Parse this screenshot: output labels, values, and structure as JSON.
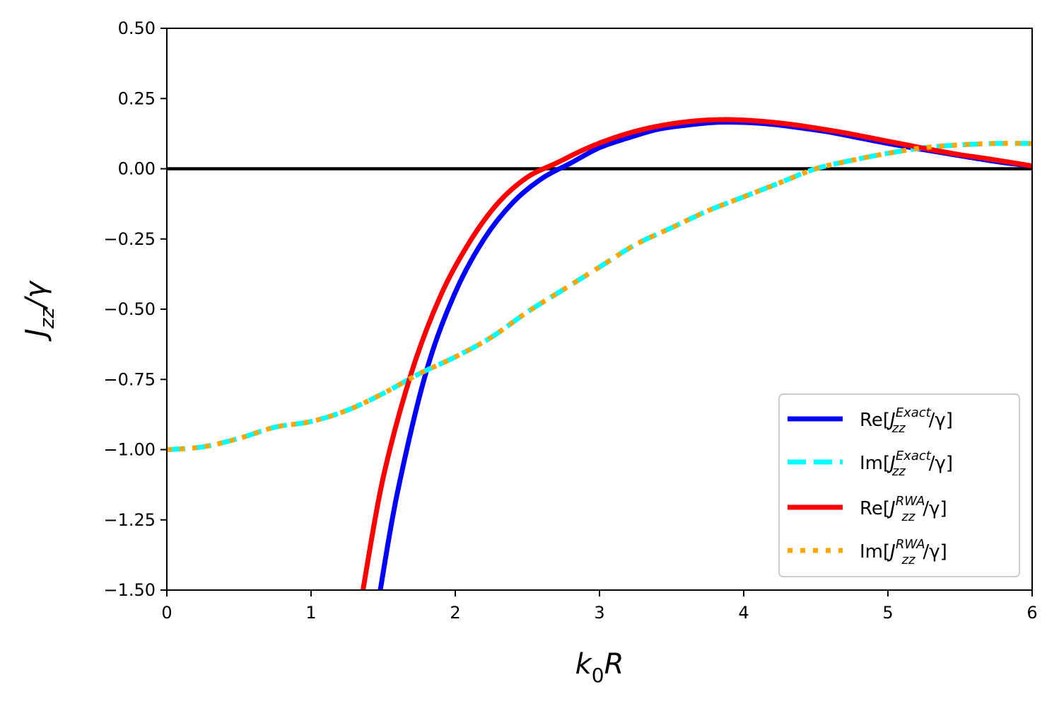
{
  "chart_data": {
    "type": "line",
    "xlabel": "k0R",
    "ylabel": "Jzz/γ",
    "xlim": [
      0,
      6
    ],
    "ylim": [
      -1.5,
      0.5
    ],
    "x_ticks": [
      "0",
      "1",
      "2",
      "3",
      "4",
      "5",
      "6"
    ],
    "y_ticks": [
      "0.50",
      "0.25",
      "0.00",
      "−0.25",
      "−0.50",
      "−0.75",
      "−1.00",
      "−1.25",
      "−1.50"
    ],
    "grid": false,
    "legend_position": "lower-right",
    "reference_line": {
      "y": 0,
      "color": "#000000"
    },
    "series": [
      {
        "name": "Re[Jzz^Exact/γ]",
        "legend": {
          "prefix": "Re[",
          "base": "J",
          "sup": "Exact",
          "sub": "zz",
          "suffix": "/γ]"
        },
        "color": "#0000ff",
        "style": "solid",
        "x": [
          1.48,
          1.6,
          1.8,
          2.0,
          2.2,
          2.4,
          2.6,
          2.8,
          3.0,
          3.2,
          3.4,
          3.6,
          3.8,
          4.0,
          4.2,
          4.4,
          4.6,
          4.8,
          5.0,
          5.2,
          5.4,
          5.6,
          5.8,
          6.0
        ],
        "y": [
          -1.5,
          -1.15,
          -0.72,
          -0.44,
          -0.25,
          -0.12,
          -0.035,
          0.02,
          0.075,
          0.11,
          0.14,
          0.155,
          0.165,
          0.165,
          0.158,
          0.145,
          0.13,
          0.11,
          0.09,
          0.072,
          0.055,
          0.038,
          0.022,
          0.01
        ]
      },
      {
        "name": "Im[Jzz^Exact/γ]",
        "legend": {
          "prefix": "Im[",
          "base": "J",
          "sup": "Exact",
          "sub": "zz",
          "suffix": "/γ]"
        },
        "color": "#00ffff",
        "style": "dashed",
        "x": [
          0,
          0.25,
          0.5,
          0.75,
          1.0,
          1.25,
          1.5,
          1.75,
          2.0,
          2.25,
          2.5,
          2.75,
          3.0,
          3.25,
          3.5,
          3.75,
          4.0,
          4.25,
          4.5,
          4.75,
          5.0,
          5.25,
          5.5,
          5.75,
          6.0
        ],
        "y": [
          -1.0,
          -0.99,
          -0.96,
          -0.92,
          -0.9,
          -0.86,
          -0.8,
          -0.73,
          -0.67,
          -0.6,
          -0.51,
          -0.43,
          -0.35,
          -0.27,
          -0.21,
          -0.15,
          -0.1,
          -0.05,
          0.0,
          0.03,
          0.055,
          0.075,
          0.085,
          0.09,
          0.09
        ]
      },
      {
        "name": "Re[Jzz^RWA/γ]",
        "legend": {
          "prefix": "Re[",
          "base": "J",
          "sup": "RWA",
          "sub": "zz",
          "suffix": "/γ]"
        },
        "color": "#ff0000",
        "style": "solid",
        "x": [
          1.36,
          1.5,
          1.7,
          1.9,
          2.1,
          2.3,
          2.5,
          2.7,
          2.9,
          3.1,
          3.3,
          3.5,
          3.7,
          3.9,
          4.1,
          4.3,
          4.5,
          4.7,
          4.9,
          5.1,
          5.3,
          5.5,
          5.7,
          6.0
        ],
        "y": [
          -1.5,
          -1.1,
          -0.72,
          -0.45,
          -0.26,
          -0.12,
          -0.03,
          0.02,
          0.07,
          0.11,
          0.14,
          0.16,
          0.172,
          0.175,
          0.17,
          0.16,
          0.145,
          0.128,
          0.108,
          0.088,
          0.068,
          0.05,
          0.035,
          0.01
        ]
      },
      {
        "name": "Im[Jzz^RWA/γ]",
        "legend": {
          "prefix": "Im[",
          "base": "J",
          "sup": "RWA",
          "sub": "zz",
          "suffix": "/γ]"
        },
        "color": "#ffa500",
        "style": "dotted",
        "x": [
          0,
          0.25,
          0.5,
          0.75,
          1.0,
          1.25,
          1.5,
          1.75,
          2.0,
          2.25,
          2.5,
          2.75,
          3.0,
          3.25,
          3.5,
          3.75,
          4.0,
          4.25,
          4.5,
          4.75,
          5.0,
          5.25,
          5.5,
          5.75,
          6.0
        ],
        "y": [
          -1.0,
          -0.99,
          -0.96,
          -0.92,
          -0.9,
          -0.86,
          -0.8,
          -0.73,
          -0.67,
          -0.6,
          -0.51,
          -0.43,
          -0.35,
          -0.27,
          -0.21,
          -0.15,
          -0.1,
          -0.05,
          0.0,
          0.03,
          0.055,
          0.075,
          0.085,
          0.09,
          0.09
        ]
      }
    ]
  }
}
